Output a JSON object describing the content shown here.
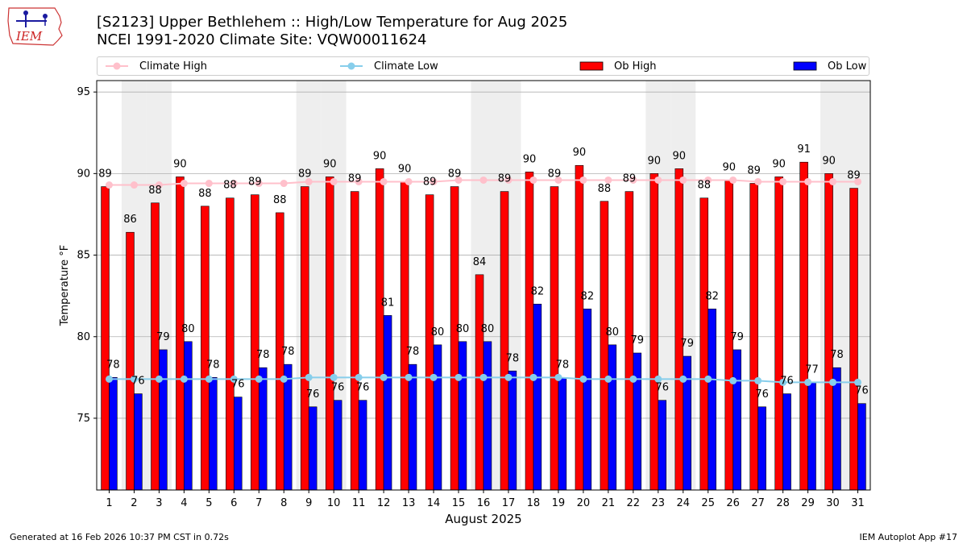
{
  "header": {
    "title_line1": "[S2123] Upper Bethlehem :: High/Low Temperature for Aug 2025",
    "title_line2": "NCEI 1991-2020 Climate Site: VQW00011624"
  },
  "logo": {
    "text": "IEM"
  },
  "legend": {
    "climate_high": "Climate High",
    "climate_low": "Climate Low",
    "ob_high": "Ob High",
    "ob_low": "Ob Low"
  },
  "footer": {
    "generated": "Generated at 16 Feb 2026 10:37 PM CST in 0.72s",
    "app": "IEM Autoplot App #17"
  },
  "colors": {
    "ob_high": "#ff0000",
    "ob_low": "#0000ff",
    "climate_high": "#ffc0cb",
    "climate_low": "#87ceeb",
    "weekend_shade": "#eeeeee",
    "grid": "#b0b0b0"
  },
  "chart_data": {
    "type": "bar",
    "title": "[S2123] Upper Bethlehem :: High/Low Temperature for Aug 2025",
    "xlabel": "August 2025",
    "ylabel": "Temperature °F",
    "ylim": [
      70.6,
      95.7
    ],
    "yticks": [
      75,
      80,
      85,
      90,
      95
    ],
    "grid": true,
    "legend_position": "top",
    "categories": [
      "1",
      "2",
      "3",
      "4",
      "5",
      "6",
      "7",
      "8",
      "9",
      "10",
      "11",
      "12",
      "13",
      "14",
      "15",
      "16",
      "17",
      "18",
      "19",
      "20",
      "21",
      "22",
      "23",
      "24",
      "25",
      "26",
      "27",
      "28",
      "29",
      "30",
      "31"
    ],
    "shaded_days": [
      2,
      3,
      9,
      10,
      16,
      17,
      23,
      24,
      30,
      31
    ],
    "series": [
      {
        "name": "Ob High",
        "kind": "bar",
        "values": [
          89.2,
          86.4,
          88.2,
          89.8,
          88.0,
          88.5,
          88.7,
          87.6,
          89.2,
          89.8,
          88.9,
          90.3,
          89.5,
          88.7,
          89.2,
          83.8,
          88.9,
          90.1,
          89.2,
          90.5,
          88.3,
          88.9,
          90.0,
          90.3,
          88.5,
          89.6,
          89.4,
          89.8,
          90.7,
          90.0,
          89.1
        ],
        "labels": [
          "89",
          "86",
          "88",
          "90",
          "88",
          "88",
          "89",
          "88",
          "89",
          "90",
          "89",
          "90",
          "90",
          "89",
          "89",
          "84",
          "89",
          "90",
          "89",
          "90",
          "88",
          "89",
          "90",
          "90",
          "88",
          "90",
          "89",
          "90",
          "91",
          "90",
          "89"
        ]
      },
      {
        "name": "Ob Low",
        "kind": "bar",
        "values": [
          77.5,
          76.5,
          79.2,
          79.7,
          77.5,
          76.3,
          78.1,
          78.3,
          75.7,
          76.1,
          76.1,
          81.3,
          78.3,
          79.5,
          79.7,
          79.7,
          77.9,
          82.0,
          77.5,
          81.7,
          79.5,
          79.0,
          76.1,
          78.8,
          81.7,
          79.2,
          75.7,
          76.5,
          77.2,
          78.1,
          75.9
        ],
        "labels": [
          "78",
          "76",
          "79",
          "80",
          "78",
          "76",
          "78",
          "78",
          "76",
          "76",
          "76",
          "81",
          "78",
          "80",
          "80",
          "80",
          "78",
          "82",
          "78",
          "82",
          "80",
          "79",
          "76",
          "79",
          "82",
          "79",
          "76",
          "76",
          "77",
          "78",
          "76"
        ]
      },
      {
        "name": "Climate High",
        "kind": "line",
        "values": [
          89.3,
          89.3,
          89.3,
          89.4,
          89.4,
          89.4,
          89.4,
          89.4,
          89.5,
          89.5,
          89.5,
          89.5,
          89.5,
          89.5,
          89.6,
          89.6,
          89.6,
          89.6,
          89.6,
          89.6,
          89.6,
          89.6,
          89.6,
          89.6,
          89.6,
          89.6,
          89.5,
          89.5,
          89.5,
          89.5,
          89.5
        ]
      },
      {
        "name": "Climate Low",
        "kind": "line",
        "values": [
          77.4,
          77.4,
          77.4,
          77.4,
          77.4,
          77.4,
          77.4,
          77.4,
          77.5,
          77.5,
          77.5,
          77.5,
          77.5,
          77.5,
          77.5,
          77.5,
          77.5,
          77.5,
          77.5,
          77.4,
          77.4,
          77.4,
          77.4,
          77.4,
          77.4,
          77.3,
          77.3,
          77.2,
          77.2,
          77.2,
          77.2
        ]
      }
    ]
  }
}
